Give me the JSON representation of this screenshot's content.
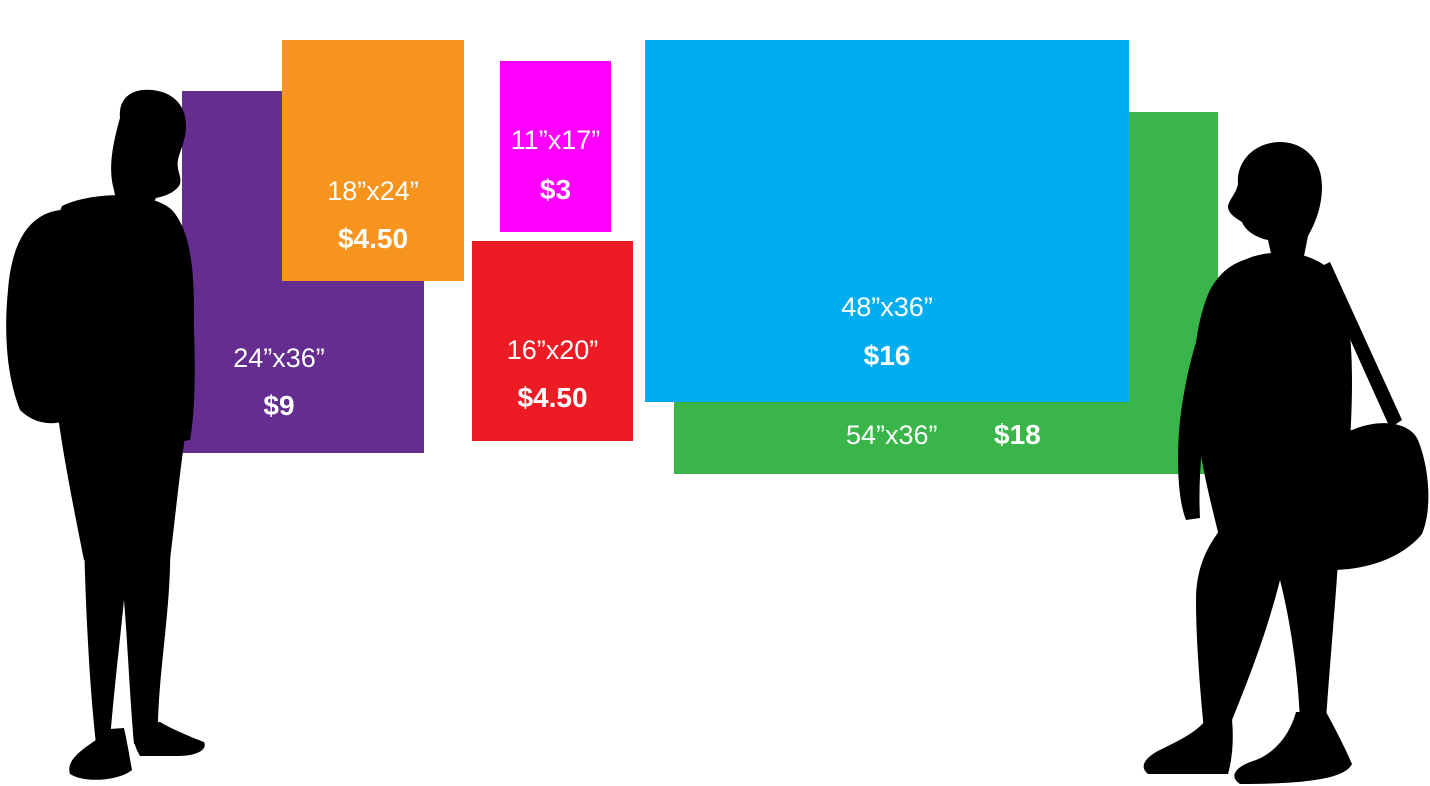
{
  "colors": {
    "purple": "#652d90",
    "orange": "#f7941d",
    "magenta": "#ff00ff",
    "red": "#ed1c24",
    "blue": "#00aeef",
    "green": "#39b54a",
    "silhouette": "#000000"
  },
  "posters": {
    "p24x36": {
      "size": "24”x36”",
      "price": "$9"
    },
    "p18x24": {
      "size": "18”x24”",
      "price": "$4.50"
    },
    "p11x17": {
      "size": "11”x17”",
      "price": "$3"
    },
    "p16x20": {
      "size": "16”x20”",
      "price": "$4.50"
    },
    "p48x36": {
      "size": "48”x36”",
      "price": "$16"
    },
    "p54x36": {
      "size": "54”x36”",
      "price": "$18"
    }
  },
  "figures": [
    "man-silhouette",
    "woman-silhouette"
  ]
}
